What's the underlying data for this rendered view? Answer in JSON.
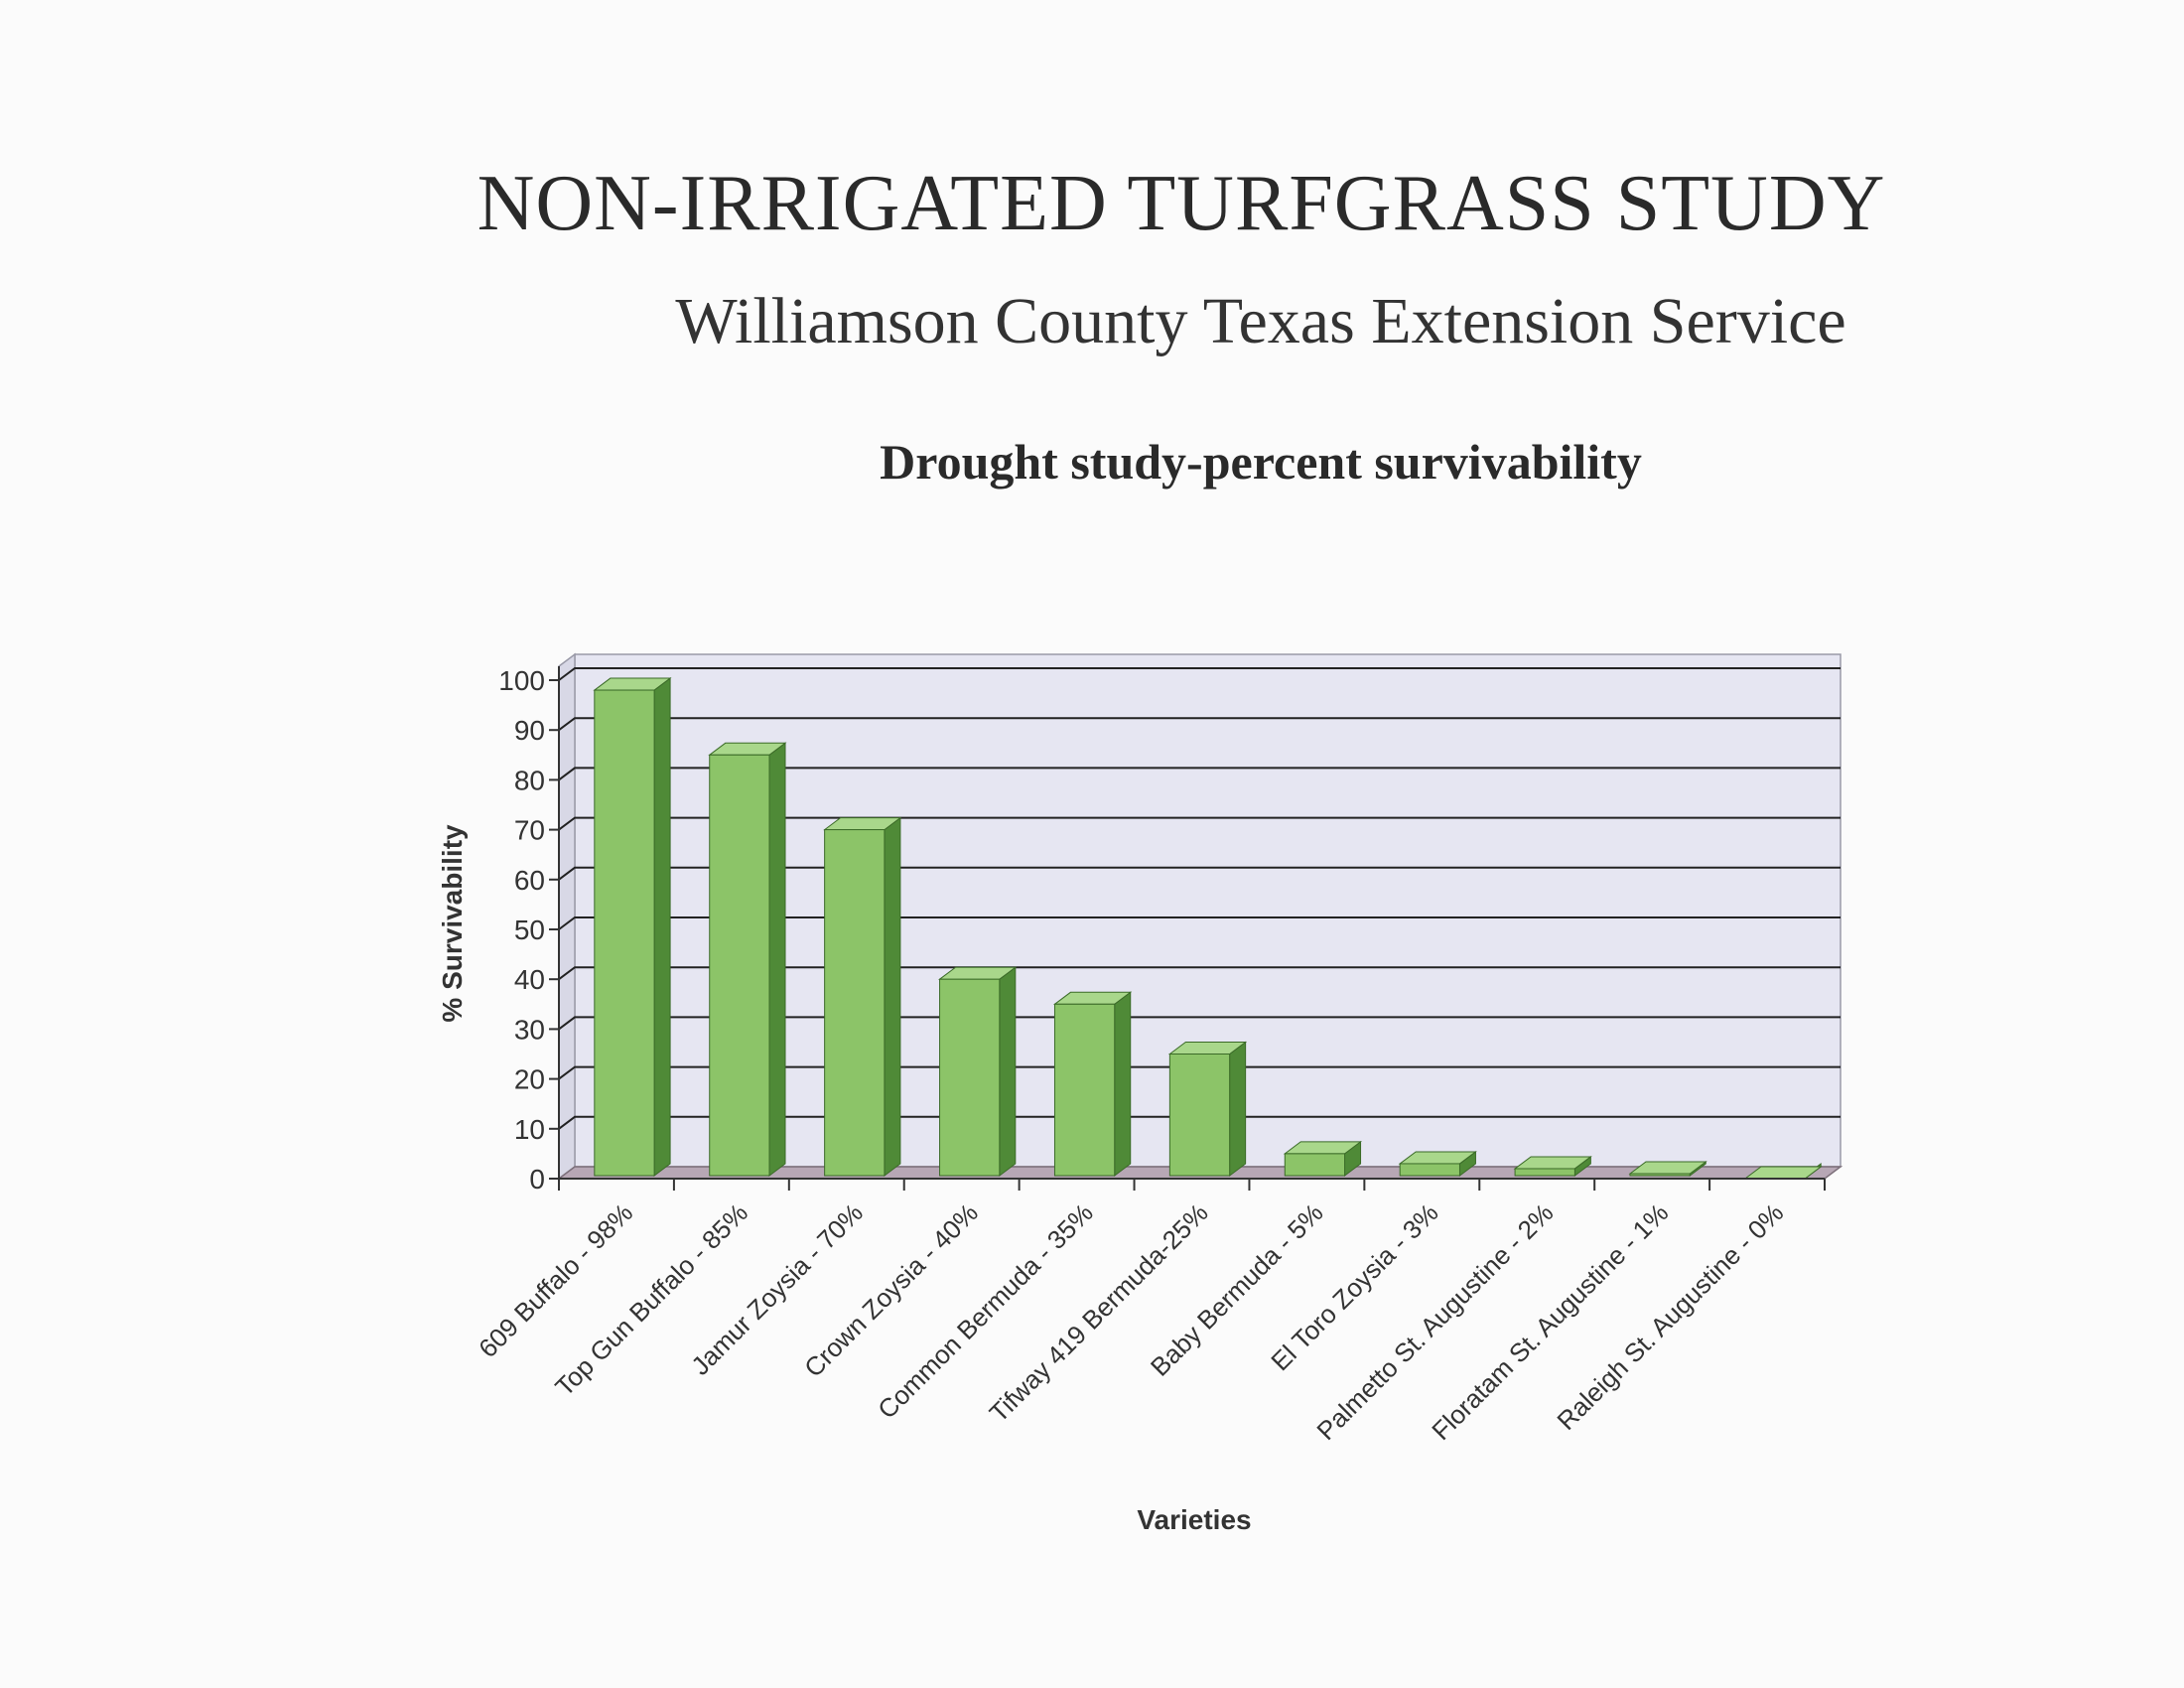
{
  "header": {
    "title": "NON-IRRIGATED TURFGRASS STUDY",
    "subtitle": "Williamson County Texas Extension Service"
  },
  "chart_data": {
    "type": "bar",
    "title": "Drought study-percent survivability",
    "xlabel": "Varieties",
    "ylabel": "% Survivability",
    "ylim": [
      0,
      100
    ],
    "yticks": [
      0,
      10,
      20,
      30,
      40,
      50,
      60,
      70,
      80,
      90,
      100
    ],
    "grid": true,
    "style": "3d-bars",
    "colors": {
      "bar_front": "#8cc468",
      "bar_side": "#4f8a37",
      "bar_top": "#a9d78b",
      "plot_background": "#e6e6f2",
      "floor": "#b7a7b5",
      "grid": "#222222"
    },
    "categories": [
      "609 Buffalo - 98%",
      "Top Gun Buffalo - 85%",
      "Jamur Zoysia - 70%",
      "Crown Zoysia - 40%",
      "Common Bermuda - 35%",
      "Tifway 419 Bermuda-25%",
      "Baby Bermuda - 5%",
      "El Toro Zoysia - 3%",
      "Palmetto St. Augustine - 2%",
      "Floratam St. Augustine - 1%",
      "Raleigh St. Augustine - 0%"
    ],
    "values": [
      98,
      85,
      70,
      40,
      35,
      25,
      5,
      3,
      2,
      1,
      0
    ]
  }
}
